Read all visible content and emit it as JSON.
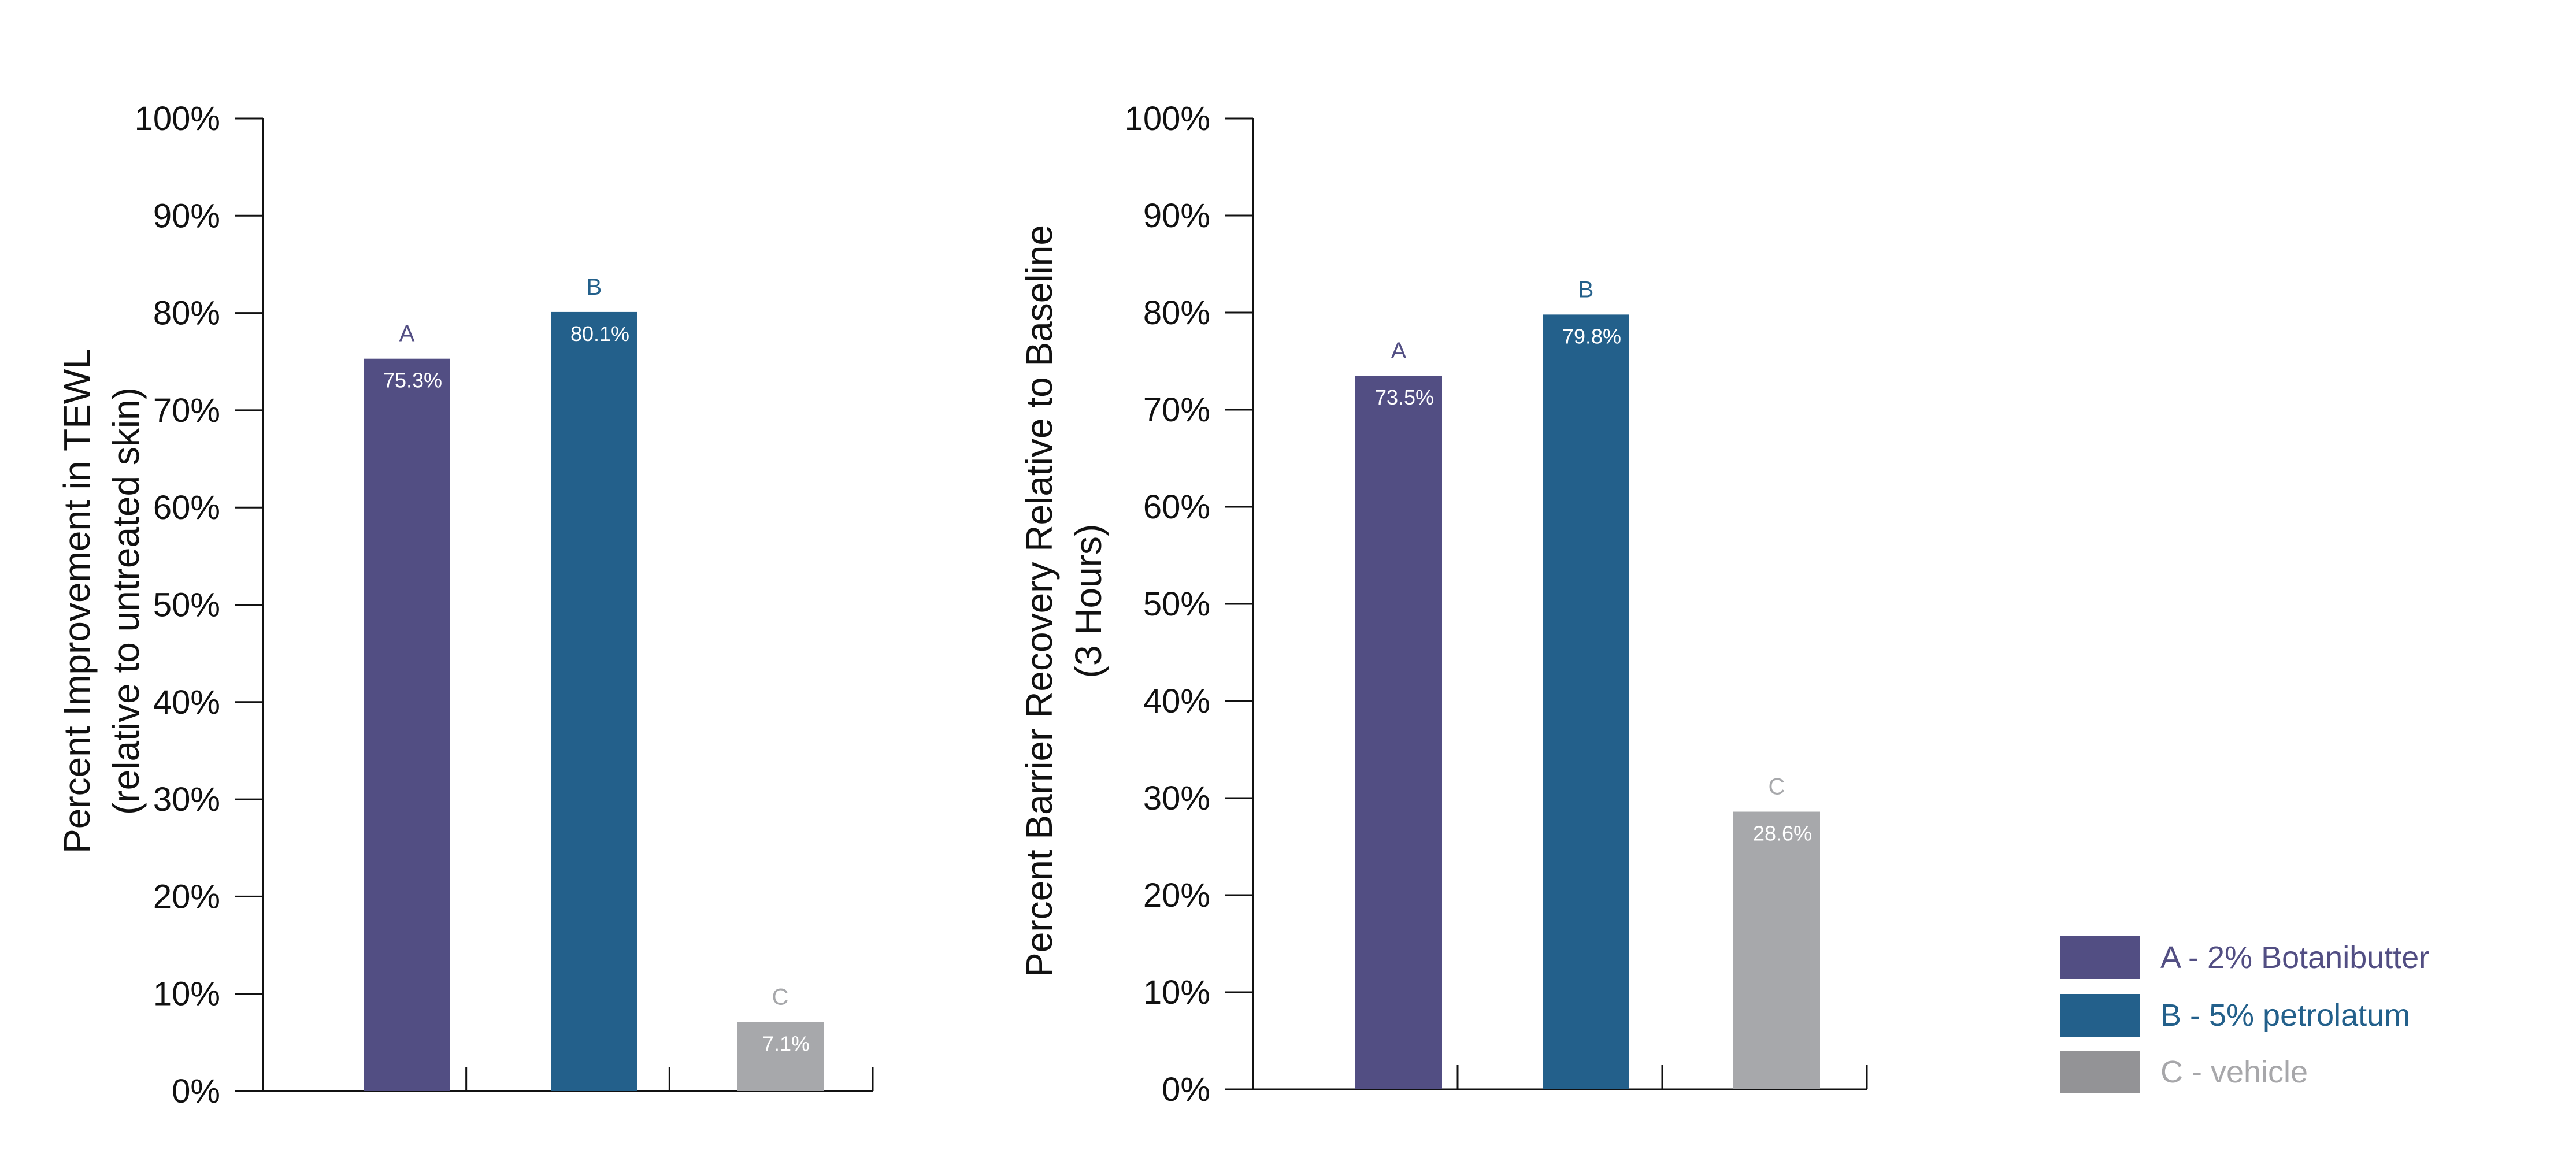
{
  "chart_data": [
    {
      "type": "bar",
      "categories": [
        "A",
        "B",
        "C"
      ],
      "values": [
        75.3,
        80.1,
        7.1
      ],
      "value_labels": [
        "75.3%",
        "80.1%",
        "7.1%"
      ],
      "ylabel_lines": [
        "Percent Improvement in TEWL",
        "(relative to untreated skin)"
      ],
      "ylim": [
        0,
        100
      ],
      "yticks": [
        "0%",
        "10%",
        "20%",
        "30%",
        "40%",
        "50%",
        "60%",
        "70%",
        "80%",
        "90%",
        "100%"
      ],
      "grid": false
    },
    {
      "type": "bar",
      "categories": [
        "A",
        "B",
        "C"
      ],
      "values": [
        73.5,
        79.8,
        28.6
      ],
      "value_labels": [
        "73.5%",
        "79.8%",
        "28.6%"
      ],
      "ylabel_lines": [
        "Percent Barrier Recovery Relative to Baseline",
        "(3 Hours)"
      ],
      "ylim": [
        0,
        100
      ],
      "yticks": [
        "0%",
        "10%",
        "20%",
        "30%",
        "40%",
        "50%",
        "60%",
        "70%",
        "80%",
        "90%",
        "100%"
      ],
      "grid": false
    }
  ],
  "legend": {
    "placement": "bottom-right",
    "items": [
      {
        "label": "A - 2% Botanibutter",
        "color": "#524e83",
        "text_color": "#524e83"
      },
      {
        "label": "B - 5% petrolatum",
        "color": "#23608b",
        "text_color": "#23608b"
      },
      {
        "label": "C - vehicle",
        "color": "#939396",
        "text_color": "#a7a7aa"
      }
    ]
  },
  "colors": {
    "A": "#524e83",
    "B": "#23608b",
    "C": "#a7a8ab",
    "axis": "#111111"
  }
}
